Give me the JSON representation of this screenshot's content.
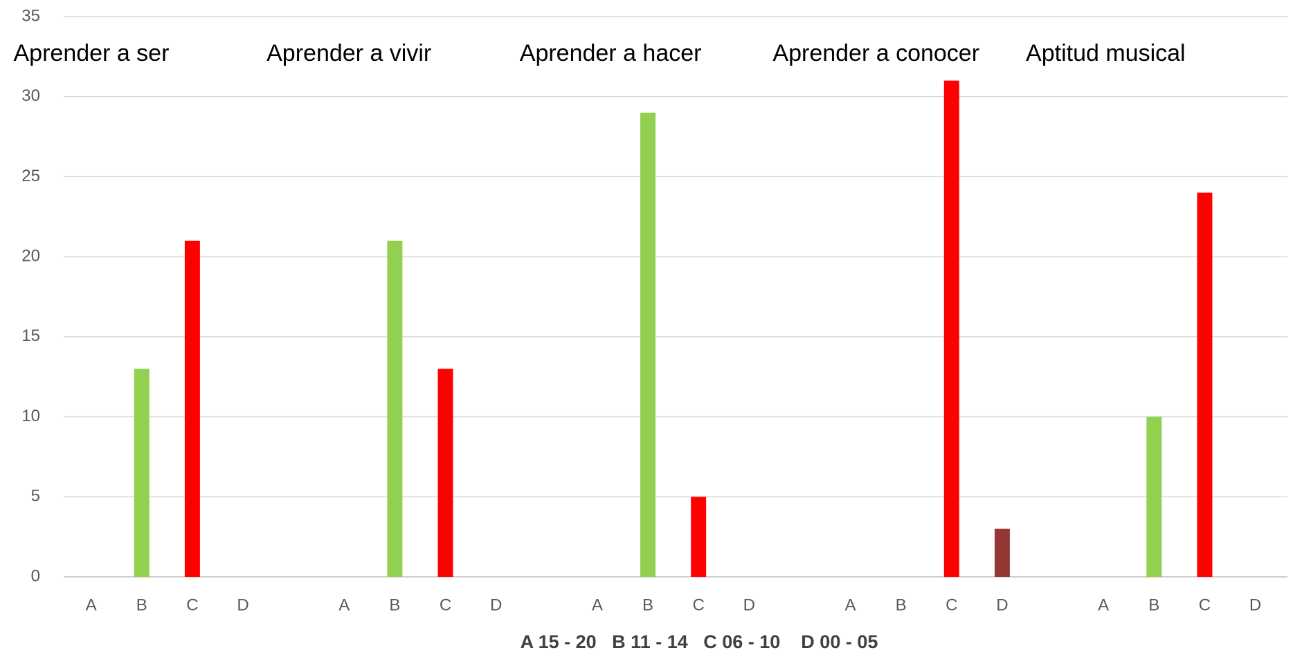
{
  "chart_data": {
    "type": "bar",
    "groups": [
      "Aprender a ser",
      "Aprender a vivir",
      "Aprender a hacer",
      "Aprender a conocer",
      "Aptitud musical"
    ],
    "categories": [
      "A",
      "B",
      "C",
      "D",
      "A",
      "B",
      "C",
      "D",
      "A",
      "B",
      "C",
      "D",
      "A",
      "B",
      "C",
      "D",
      "A",
      "B",
      "C",
      "D"
    ],
    "values": [
      0,
      13,
      21,
      0,
      0,
      21,
      13,
      0,
      0,
      29,
      5,
      0,
      0,
      0,
      31,
      3,
      0,
      10,
      24,
      0
    ],
    "colors": [
      "#92d050",
      "#92d050",
      "#ff0000",
      "#953735",
      "#92d050",
      "#92d050",
      "#ff0000",
      "#953735",
      "#92d050",
      "#92d050",
      "#ff0000",
      "#953735",
      "#92d050",
      "#92d050",
      "#ff0000",
      "#953735",
      "#92d050",
      "#92d050",
      "#ff0000",
      "#953735"
    ],
    "x_label": "A 15 - 20   B 11 - 14   C 06 - 10    D 00 - 05",
    "ylim": [
      0,
      35
    ],
    "yticks": [
      0,
      5,
      10,
      15,
      20,
      25,
      30,
      35
    ],
    "grid": true
  }
}
